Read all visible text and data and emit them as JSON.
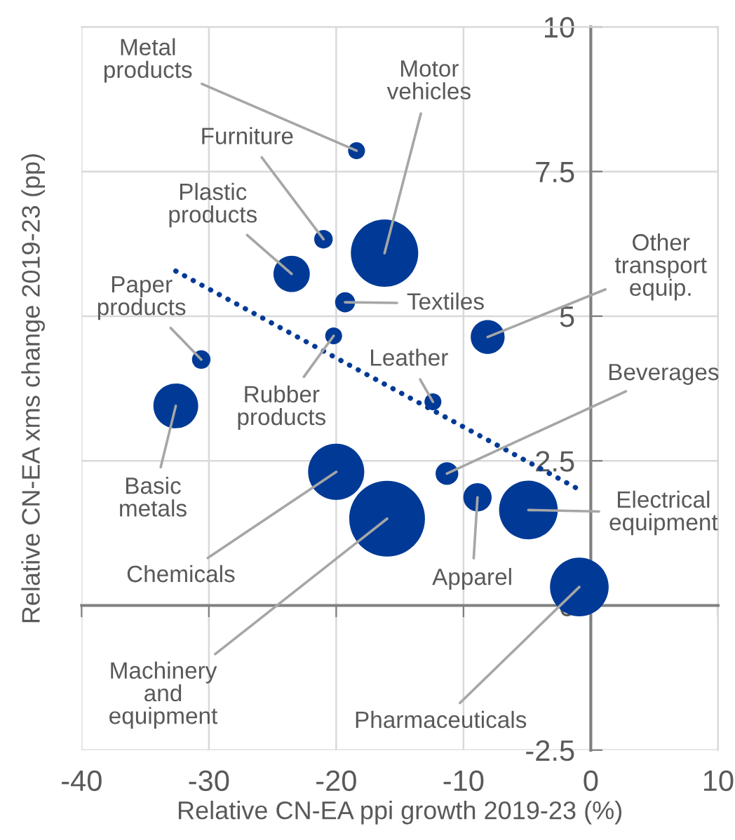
{
  "chart_data": {
    "type": "bubble",
    "xlabel": "Relative CN-EA ppi growth 2019-23 (%)",
    "ylabel": "Relative CN-EA xms change 2019-23 (pp)",
    "xlim": [
      -40,
      10
    ],
    "ylim": [
      -2.5,
      10
    ],
    "xticks": [
      -40,
      -30,
      -20,
      -10,
      0,
      10
    ],
    "yticks": [
      {
        "value": -2.5,
        "label": "-2.5"
      },
      0,
      2.5,
      5,
      7.5,
      10
    ],
    "grid": true,
    "series": [
      {
        "color": "#003a96",
        "x": [
          -18.4,
          -16.2,
          -21.0,
          -23.5,
          -8.1,
          -19.3,
          -30.6,
          -20.2,
          -12.4,
          -11.3,
          -32.6,
          -20.0,
          -4.9,
          -8.9,
          -16.0,
          -0.9
        ],
        "values": [
          7.86,
          6.09,
          6.33,
          5.73,
          4.64,
          5.24,
          4.25,
          4.66,
          3.52,
          2.28,
          3.45,
          2.31,
          1.65,
          1.87,
          1.5,
          0.32
        ],
        "sizes": [
          0.05,
          0.79,
          0.06,
          0.23,
          0.2,
          0.07,
          0.06,
          0.05,
          0.05,
          0.09,
          0.35,
          0.55,
          0.6,
          0.14,
          1,
          0.6
        ]
      },
      {
        "type": "line",
        "color": "#003a96",
        "line_style": "dotted",
        "x": [
          -32.6,
          -0.8
        ],
        "values": [
          5.78,
          1.99
        ]
      }
    ],
    "annotations": [
      {
        "text": "Metal\nproducts",
        "x": -18.4,
        "y": 7.86
      },
      {
        "text": "Motor\nvehicles",
        "x": -16.2,
        "y": 6.09
      },
      {
        "text": "Furniture",
        "x": -21.0,
        "y": 6.33
      },
      {
        "text": "Plastic\nproducts",
        "x": -23.5,
        "y": 5.73
      },
      {
        "text": "Other\ntransport\nequip.",
        "x": -8.1,
        "y": 4.64
      },
      {
        "text": "Textiles",
        "x": -19.3,
        "y": 5.24
      },
      {
        "text": "Paper\nproducts",
        "x": -30.6,
        "y": 4.25
      },
      {
        "text": "Rubber\nproducts",
        "x": -20.2,
        "y": 4.66
      },
      {
        "text": "Leather",
        "x": -12.4,
        "y": 3.52
      },
      {
        "text": "Beverages",
        "x": -11.3,
        "y": 2.28
      },
      {
        "text": "Basic\nmetals",
        "x": -32.6,
        "y": 3.45
      },
      {
        "text": "Chemicals",
        "x": -20.0,
        "y": 2.31
      },
      {
        "text": "Electrical\nequipment",
        "x": -4.9,
        "y": 1.65
      },
      {
        "text": "Apparel",
        "x": -8.9,
        "y": 1.87
      },
      {
        "text": "Machinery\nand\nequipment",
        "x": -16.0,
        "y": 1.5
      },
      {
        "text": "Pharmaceuticals",
        "x": -0.9,
        "y": 0.32
      }
    ]
  }
}
